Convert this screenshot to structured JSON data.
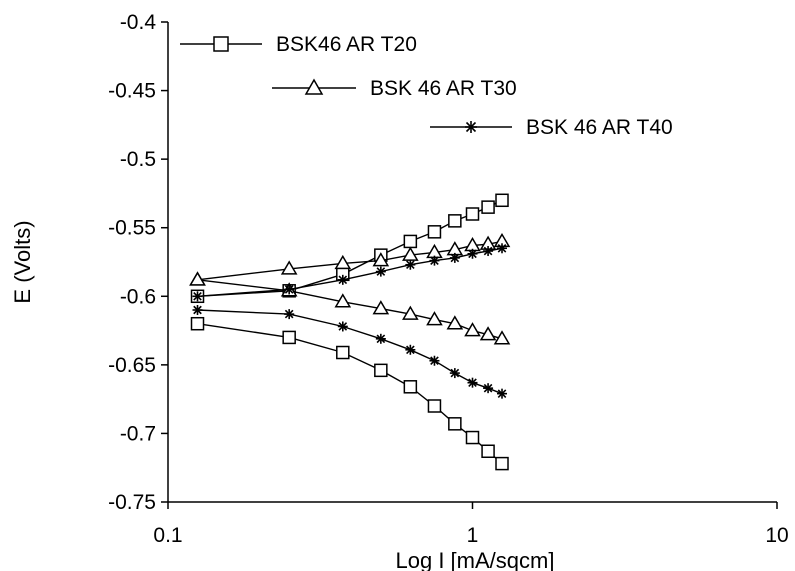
{
  "chart_data": {
    "type": "scatter",
    "title": "",
    "xlabel": "Log I [mA/sqcm]",
    "ylabel": "E (Volts)",
    "x_scale": "log",
    "xlim": [
      0.1,
      10
    ],
    "ylim": [
      -0.75,
      -0.4
    ],
    "x_ticks": [
      0.1,
      1,
      10
    ],
    "x_tick_labels": [
      "0.1",
      "1",
      "10"
    ],
    "y_ticks": [
      -0.4,
      -0.45,
      -0.5,
      -0.55,
      -0.6,
      -0.65,
      -0.7,
      -0.75
    ],
    "y_tick_labels": [
      "-0.4",
      "-0.45",
      "-0.5",
      "-0.55",
      "-0.6",
      "-0.65",
      "-0.7",
      "-0.75"
    ],
    "grid": false,
    "legend_position": "top",
    "series": [
      {
        "name": "BSK46 AR T20",
        "marker": "square",
        "branches": [
          {
            "x": [
              0.125,
              0.25,
              0.375,
              0.5,
              0.625,
              0.75,
              0.875,
              1.0,
              1.125,
              1.25
            ],
            "y": [
              -0.6,
              -0.596,
              -0.584,
              -0.57,
              -0.56,
              -0.553,
              -0.545,
              -0.54,
              -0.535,
              -0.53
            ]
          },
          {
            "x": [
              0.125,
              0.25,
              0.375,
              0.5,
              0.625,
              0.75,
              0.875,
              1.0,
              1.125,
              1.25
            ],
            "y": [
              -0.62,
              -0.63,
              -0.641,
              -0.654,
              -0.666,
              -0.68,
              -0.693,
              -0.703,
              -0.713,
              -0.722
            ]
          }
        ]
      },
      {
        "name": "BSK 46 AR T30",
        "marker": "triangle",
        "branches": [
          {
            "x": [
              0.125,
              0.25,
              0.375,
              0.5,
              0.625,
              0.75,
              0.875,
              1.0,
              1.125,
              1.25
            ],
            "y": [
              -0.588,
              -0.58,
              -0.576,
              -0.574,
              -0.57,
              -0.568,
              -0.566,
              -0.563,
              -0.562,
              -0.56
            ]
          },
          {
            "x": [
              0.125,
              0.25,
              0.375,
              0.5,
              0.625,
              0.75,
              0.875,
              1.0,
              1.125,
              1.25
            ],
            "y": [
              -0.588,
              -0.596,
              -0.604,
              -0.609,
              -0.613,
              -0.617,
              -0.62,
              -0.625,
              -0.628,
              -0.631
            ]
          }
        ]
      },
      {
        "name": "BSK 46 AR T40",
        "marker": "star",
        "branches": [
          {
            "x": [
              0.125,
              0.25,
              0.375,
              0.5,
              0.625,
              0.75,
              0.875,
              1.0,
              1.125,
              1.25
            ],
            "y": [
              -0.6,
              -0.595,
              -0.588,
              -0.582,
              -0.577,
              -0.574,
              -0.572,
              -0.569,
              -0.567,
              -0.565
            ]
          },
          {
            "x": [
              0.125,
              0.25,
              0.375,
              0.5,
              0.625,
              0.75,
              0.875,
              1.0,
              1.125,
              1.25
            ],
            "y": [
              -0.61,
              -0.613,
              -0.622,
              -0.631,
              -0.639,
              -0.647,
              -0.656,
              -0.663,
              -0.667,
              -0.671
            ]
          }
        ]
      }
    ],
    "colors": {
      "line": "#000000",
      "marker_fill": "#ffffff",
      "background": "#ffffff"
    }
  }
}
